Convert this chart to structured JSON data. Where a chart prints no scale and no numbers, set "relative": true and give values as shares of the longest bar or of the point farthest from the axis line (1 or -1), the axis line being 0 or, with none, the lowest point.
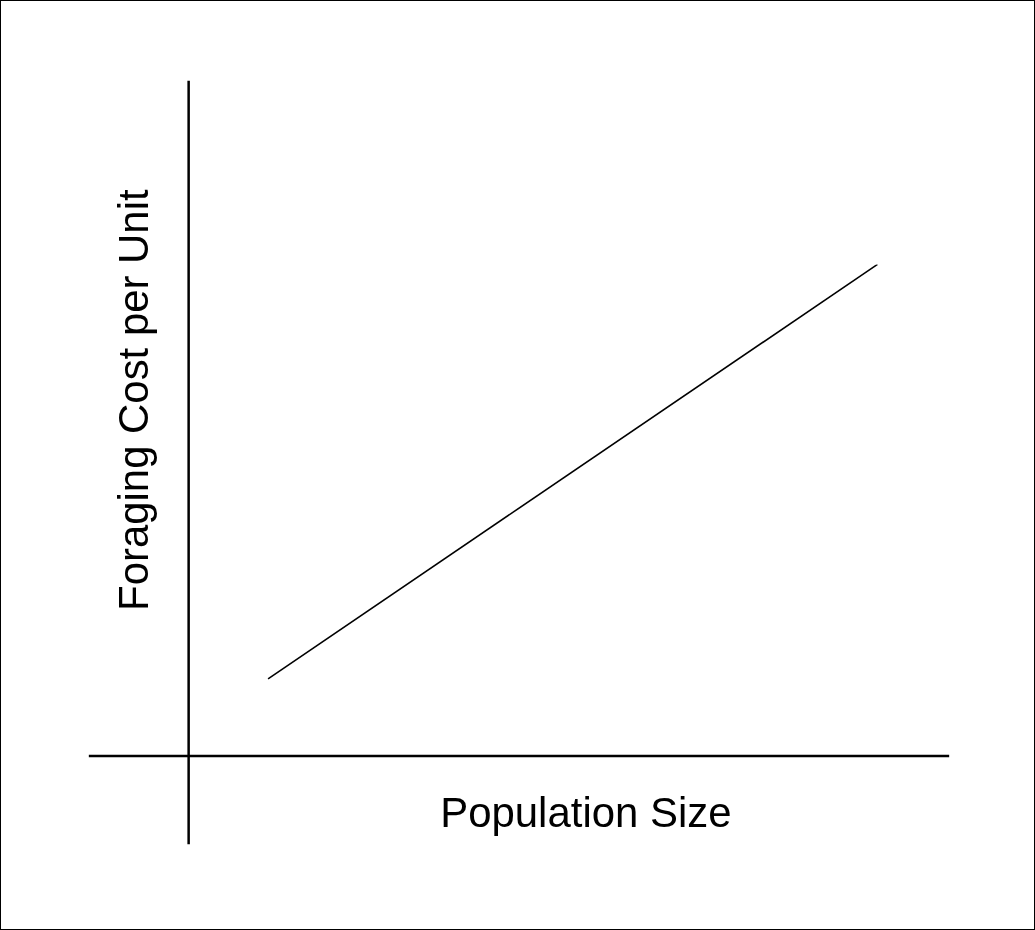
{
  "chart_data": {
    "type": "line",
    "relative": true,
    "xlabel": "Population Size",
    "ylabel": "Foraging Cost per Unit",
    "categories": [
      null,
      null,
      null,
      null,
      null,
      null,
      null,
      null,
      null,
      null,
      null,
      null,
      null,
      null,
      null,
      null,
      null,
      null,
      null,
      null,
      null,
      null,
      null,
      null,
      null
    ],
    "series": [
      {
        "color": "#000000",
        "values": [
          null,
          null,
          null,
          null,
          null,
          0.157,
          null,
          null,
          null,
          null,
          null,
          null,
          null,
          null,
          null,
          null,
          null,
          null,
          null,
          null,
          null,
          null,
          1,
          null,
          null
        ]
      }
    ],
    "marker": "none",
    "line_style": "solid",
    "grid": false,
    "legend": false
  }
}
